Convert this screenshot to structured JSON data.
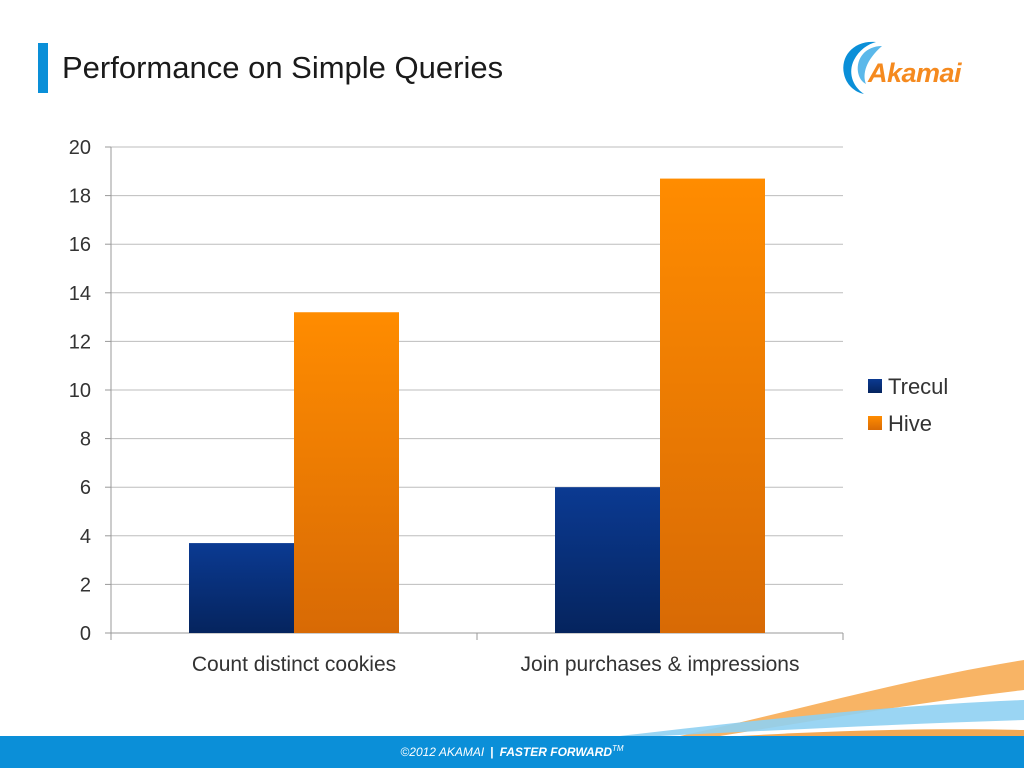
{
  "slide": {
    "title": "Performance on Simple Queries"
  },
  "logo": {
    "text": "Akamai"
  },
  "footer": {
    "copyright": "©2012 AKAMAI",
    "separator": "|",
    "slogan": "FASTER FORWARD",
    "trademark": "TM"
  },
  "colors": {
    "accent": "#0a8fd8",
    "trecul": "#0a2f7a",
    "hive": "#f0830a"
  },
  "chart_data": {
    "type": "bar",
    "categories": [
      "Count distinct cookies",
      "Join purchases & impressions"
    ],
    "series": [
      {
        "name": "Trecul",
        "values": [
          3.7,
          6.0
        ],
        "color": "#0a2f7a"
      },
      {
        "name": "Hive",
        "values": [
          13.2,
          18.7
        ],
        "color": "#f0830a"
      }
    ],
    "ylim": [
      0,
      20
    ],
    "yticks": [
      "0",
      "2",
      "4",
      "6",
      "8",
      "10",
      "12",
      "14",
      "16",
      "18",
      "20"
    ],
    "grid": true,
    "legend": "right"
  }
}
